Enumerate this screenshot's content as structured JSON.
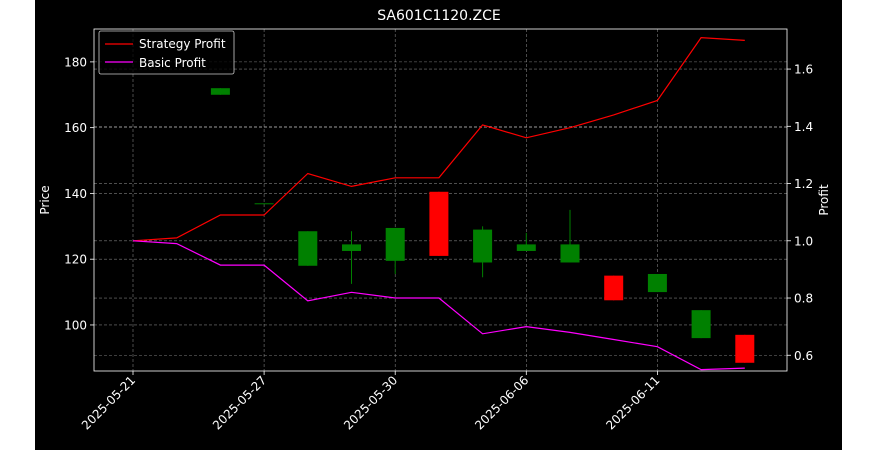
{
  "chart_data": {
    "type": "candlestick",
    "title": "SA601C1120.ZCE",
    "ylabel_left": "Price",
    "ylabel_right": "Profit",
    "grid": true,
    "legend_position": "top-left",
    "x_tick_labels": [
      {
        "index": 0,
        "label": "2025-05-21"
      },
      {
        "index": 3,
        "label": "2025-05-27"
      },
      {
        "index": 6,
        "label": "2025-05-30"
      },
      {
        "index": 9,
        "label": "2025-06-06"
      },
      {
        "index": 12,
        "label": "2025-06-11"
      }
    ],
    "y_left": {
      "lim": [
        86,
        190
      ],
      "ticks": [
        100,
        120,
        140,
        160,
        180
      ]
    },
    "y_right": {
      "lim": [
        0.545,
        1.74
      ],
      "ticks": [
        "0.6",
        "0.8",
        "1.0",
        "1.2",
        "1.4",
        "1.6"
      ]
    },
    "candles": [
      {
        "i": 2,
        "open": 170,
        "close": 172,
        "high": 172,
        "low": 170,
        "color": "#008000"
      },
      {
        "i": 3,
        "open": 137,
        "close": 137,
        "high": 137,
        "low": 137,
        "color": "#008000"
      },
      {
        "i": 4,
        "open": 118,
        "close": 128.5,
        "high": 128.5,
        "low": 118,
        "color": "#008000"
      },
      {
        "i": 5,
        "open": 122.5,
        "close": 124.5,
        "high": 128.5,
        "low": 112.5,
        "color": "#008000"
      },
      {
        "i": 6,
        "open": 119.5,
        "close": 129.5,
        "high": 129.5,
        "low": 115.5,
        "color": "#008000"
      },
      {
        "i": 7,
        "open": 140.5,
        "close": 121,
        "high": 140.5,
        "low": 121,
        "color": "#ff0000"
      },
      {
        "i": 8,
        "open": 119,
        "close": 129,
        "high": 130,
        "low": 114.5,
        "color": "#008000"
      },
      {
        "i": 9,
        "open": 122.5,
        "close": 124.5,
        "high": 128,
        "low": 122.5,
        "color": "#008000"
      },
      {
        "i": 10,
        "open": 119,
        "close": 124.5,
        "high": 135,
        "low": 119,
        "color": "#008000"
      },
      {
        "i": 11,
        "open": 115,
        "close": 107.5,
        "high": 115,
        "low": 107.5,
        "color": "#ff0000"
      },
      {
        "i": 12,
        "open": 110,
        "close": 115.5,
        "high": 115.5,
        "low": 110,
        "color": "#008000"
      },
      {
        "i": 13,
        "open": 96,
        "close": 104.5,
        "high": 104.5,
        "low": 96,
        "color": "#008000"
      },
      {
        "i": 14,
        "open": 97,
        "close": 88.5,
        "high": 97,
        "low": 88.5,
        "color": "#ff0000"
      }
    ],
    "series": [
      {
        "name": "Strategy Profit",
        "color": "#ff0000",
        "x": [
          0,
          1,
          2,
          3,
          4,
          5,
          6,
          7,
          8,
          9,
          10,
          11,
          12,
          13,
          14
        ],
        "values": [
          1.0,
          1.01,
          1.09,
          1.09,
          1.235,
          1.19,
          1.22,
          1.22,
          1.405,
          1.36,
          1.395,
          1.44,
          1.49,
          1.71,
          1.7
        ]
      },
      {
        "name": "Basic Profit",
        "color": "#ff00ff",
        "x": [
          0,
          1,
          2,
          3,
          4,
          5,
          6,
          7,
          8,
          9,
          10,
          11,
          12,
          13,
          14
        ],
        "values": [
          1.0,
          0.99,
          0.915,
          0.915,
          0.79,
          0.82,
          0.8,
          0.8,
          0.675,
          0.7,
          0.68,
          0.655,
          0.63,
          0.55,
          0.555
        ]
      }
    ]
  }
}
